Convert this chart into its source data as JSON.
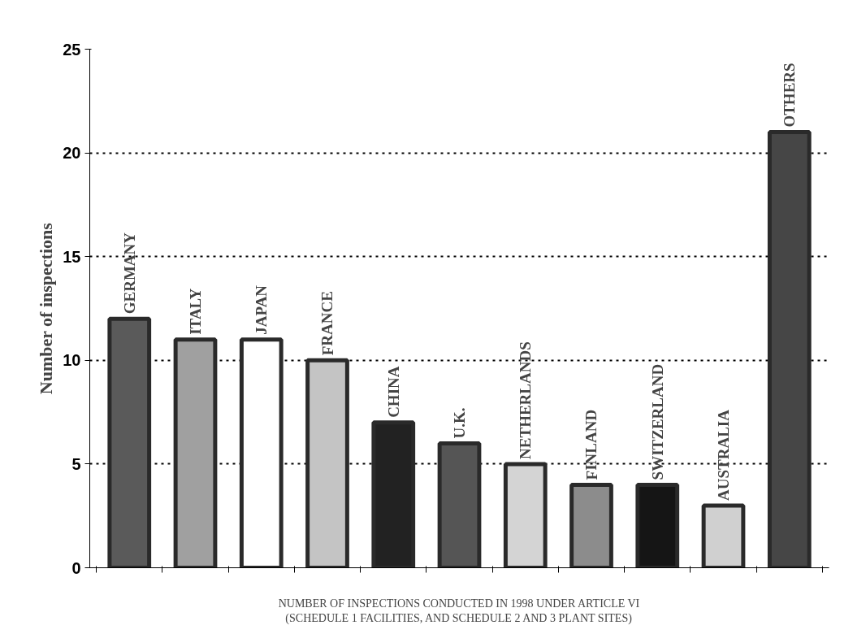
{
  "chart_data": {
    "type": "bar",
    "ylabel": "Number of inspections",
    "xlabel": "NUMBER OF INSPECTIONS CONDUCTED IN 1998 UNDER ARTICLE VI\n(SCHEDULE 1 FACILITIES, AND SCHEDULE 2 AND 3 PLANT SITES)",
    "categories": [
      "GERMANY",
      "ITALY",
      "JAPAN",
      "FRANCE",
      "CHINA",
      "U.K.",
      "NETHERLANDS",
      "FINLAND",
      "SWITZERLAND",
      "AUSTRALIA",
      "OTHERS"
    ],
    "values": [
      12,
      11,
      11,
      10,
      7,
      6,
      5,
      4,
      4,
      3,
      21
    ],
    "colors": [
      "#5a5a5a",
      "#a0a0a0",
      "#ffffff",
      "#c4c4c4",
      "#222222",
      "#555555",
      "#d4d4d4",
      "#8c8c8c",
      "#151515",
      "#d0d0d0",
      "#464646"
    ],
    "ylim": [
      0,
      25
    ],
    "yticks": [
      0,
      5,
      10,
      15,
      20,
      25
    ],
    "grid": "y",
    "tick_labels": "y"
  }
}
